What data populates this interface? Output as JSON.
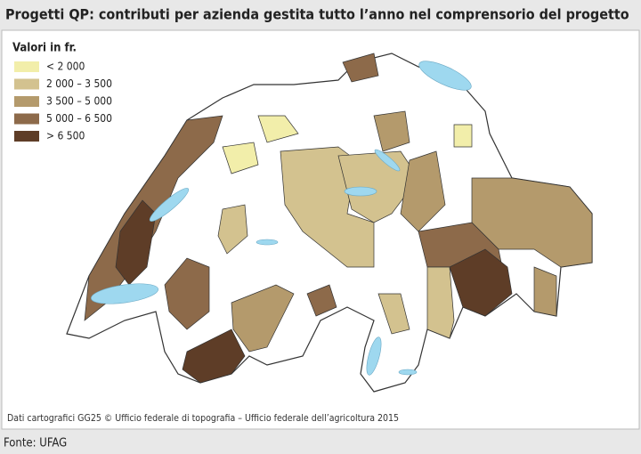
{
  "header": {
    "title": "Progetti QP: contributi per azienda gestita tutto l’anno nel comprensorio del progetto"
  },
  "legend": {
    "title": "Valori in fr.",
    "items": [
      {
        "label": "< 2 000",
        "color": "#f2eeaa"
      },
      {
        "label": "2 000 – 3 500",
        "color": "#d3c28f"
      },
      {
        "label": "3 500 – 5 000",
        "color": "#b49a6c"
      },
      {
        "label": "5 000 – 6 500",
        "color": "#8d6a4a"
      },
      {
        "label": "> 6 500",
        "color": "#5e3d27"
      }
    ]
  },
  "credit": "Dati cartografici GG25 © Ufficio federale di topografia – Ufficio federale dell’agricoltura 2015",
  "source": "Fonte: UFAG"
}
